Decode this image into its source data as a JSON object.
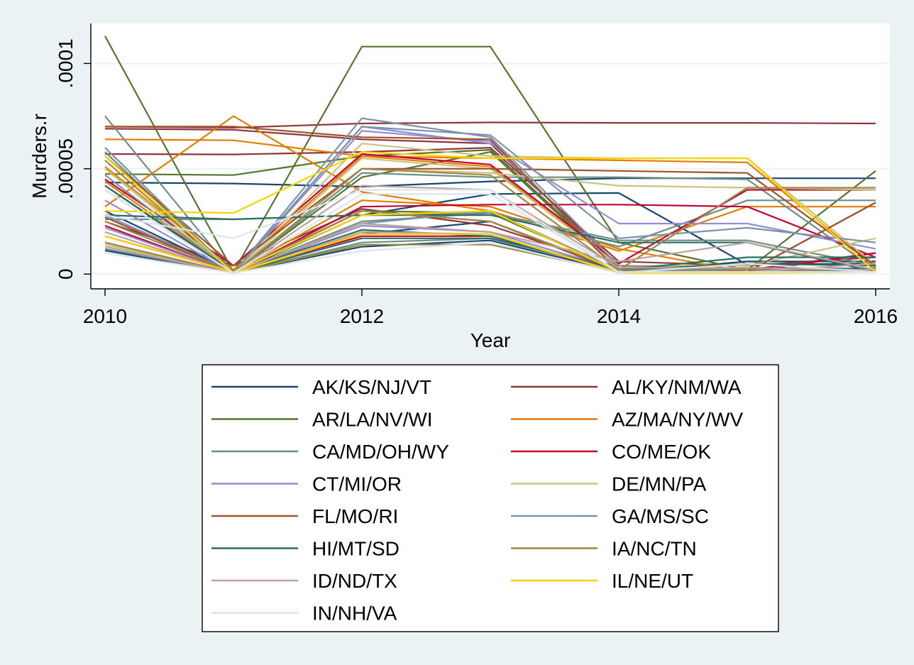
{
  "chart_data": {
    "type": "line",
    "title": "",
    "xlabel": "Year",
    "ylabel": "Murders.r",
    "x": [
      2010,
      2011,
      2012,
      2013,
      2014,
      2015,
      2016
    ],
    "xlim": [
      2010,
      2016
    ],
    "ylim": [
      -7e-06,
      0.000119
    ],
    "x_ticks": [
      2010,
      2012,
      2014,
      2016
    ],
    "x_tick_labels": [
      "2010",
      "2012",
      "2014",
      "2016"
    ],
    "y_ticks": [
      0,
      5e-05,
      0.0001
    ],
    "y_tick_labels": [
      "0",
      ".00005",
      ".0001"
    ],
    "grid": "horizontal",
    "legend_position": "bottom",
    "legend_columns": 2,
    "series": [
      {
        "name": "AK/KS/NJ/VT",
        "color": "#1a476f",
        "values": [
          4.35e-05,
          4.3e-05,
          4.15e-05,
          4.4e-05,
          4.55e-05,
          4.55e-05,
          4.55e-05
        ]
      },
      {
        "name": "AK/KS/NJ/VT",
        "color": "#1a476f",
        "values": [
          1.12e-05,
          5e-07,
          1.3e-05,
          1.6e-05,
          1e-06,
          6e-06,
          6e-06
        ]
      },
      {
        "name": "AK/KS/NJ/VT",
        "color": "#1a476f",
        "values": [
          4.2e-05,
          5e-07,
          2.8e-05,
          3.8e-05,
          3.85e-05,
          4.5e-06,
          5e-06
        ]
      },
      {
        "name": "AK/KS/NJ/VT",
        "color": "#1a476f",
        "values": [
          3e-05,
          1e-06,
          1.9e-05,
          2.5e-05,
          2e-06,
          3e-06,
          2.5e-06
        ]
      },
      {
        "name": "AL/KY/NM/WA",
        "color": "#90353b",
        "values": [
          7e-05,
          6.95e-05,
          7.15e-05,
          7.2e-05,
          7.18e-05,
          7.18e-05,
          7.15e-05
        ]
      },
      {
        "name": "AL/KY/NM/WA",
        "color": "#90353b",
        "values": [
          6.9e-05,
          6.85e-05,
          6.4e-05,
          6.2e-05,
          4e-06,
          2e-06,
          1e-05
        ]
      },
      {
        "name": "AL/KY/NM/WA",
        "color": "#90353b",
        "values": [
          5.7e-05,
          5.68e-05,
          5.8e-05,
          6e-05,
          6e-06,
          4e-06,
          8e-06
        ]
      },
      {
        "name": "AL/KY/NM/WA",
        "color": "#90353b",
        "values": [
          2.5e-05,
          4e-06,
          3.1e-05,
          2.3e-05,
          3e-06,
          1e-06,
          3.4e-05
        ]
      },
      {
        "name": "AR/LA/NV/WI",
        "color": "#55752f",
        "values": [
          0.000113,
          1e-06,
          0.000108,
          0.000108,
          1.5e-05,
          2e-06,
          4.9e-05
        ]
      },
      {
        "name": "AR/LA/NV/WI",
        "color": "#55752f",
        "values": [
          4.75e-05,
          4.7e-05,
          5.6e-05,
          5.9e-05,
          3e-06,
          2e-06,
          2e-06
        ]
      },
      {
        "name": "AR/LA/NV/WI",
        "color": "#55752f",
        "values": [
          5.6e-05,
          5e-07,
          4.6e-05,
          5.8e-05,
          2e-06,
          1e-06,
          1e-06
        ]
      },
      {
        "name": "AR/LA/NV/WI",
        "color": "#55752f",
        "values": [
          2.8e-05,
          1e-06,
          3e-05,
          2.9e-05,
          2e-06,
          1e-06,
          1e-06
        ]
      },
      {
        "name": "AZ/MA/NY/WV",
        "color": "#e37e00",
        "values": [
          6.4e-05,
          6.35e-05,
          5.6e-05,
          5.5e-05,
          5.4e-05,
          5.3e-05,
          3e-06
        ]
      },
      {
        "name": "AZ/MA/NY/WV",
        "color": "#e37e00",
        "values": [
          3.2e-05,
          7.5e-05,
          3.9e-05,
          3e-05,
          1.1e-05,
          3.2e-05,
          3.2e-05
        ]
      },
      {
        "name": "AZ/MA/NY/WV",
        "color": "#e37e00",
        "values": [
          4.4e-05,
          1e-06,
          3.5e-05,
          3.2e-05,
          1.2e-05,
          1e-06,
          1e-06
        ]
      },
      {
        "name": "AZ/MA/NY/WV",
        "color": "#e37e00",
        "values": [
          5.1e-05,
          2e-06,
          5.6e-05,
          5.1e-05,
          4e-06,
          2e-06,
          2e-06
        ]
      },
      {
        "name": "CA/MD/OH/WY",
        "color": "#6e8e84",
        "values": [
          7.5e-05,
          5e-07,
          4.8e-05,
          4.6e-05,
          4.6e-05,
          4.5e-05,
          2e-06
        ]
      },
      {
        "name": "CA/MD/OH/WY",
        "color": "#6e8e84",
        "values": [
          5.8e-05,
          5e-07,
          2.5e-05,
          2.9e-05,
          1.3e-05,
          3.5e-05,
          3.5e-05
        ]
      },
      {
        "name": "CA/MD/OH/WY",
        "color": "#6e8e84",
        "values": [
          2.6e-05,
          2.6e-05,
          2.8e-05,
          2.9e-05,
          1.6e-05,
          1.6e-05,
          4e-06
        ]
      },
      {
        "name": "CA/MD/OH/WY",
        "color": "#6e8e84",
        "values": [
          1.2e-05,
          5e-07,
          1.5e-05,
          1.7e-05,
          2e-06,
          3e-06,
          1e-06
        ]
      },
      {
        "name": "CO/ME/OK",
        "color": "#c10534",
        "values": [
          4.5e-05,
          4e-06,
          5.7e-05,
          5.2e-05,
          5e-06,
          4e-05,
          4e-05
        ]
      },
      {
        "name": "CO/ME/OK",
        "color": "#c10534",
        "values": [
          2.3e-05,
          5e-07,
          3.2e-05,
          3.3e-05,
          3.3e-05,
          3.2e-05,
          8e-06
        ]
      },
      {
        "name": "CO/ME/OK",
        "color": "#c10534",
        "values": [
          1.8e-05,
          1e-06,
          1.8e-05,
          1.8e-05,
          1e-06,
          1e-06,
          1e-05
        ]
      },
      {
        "name": "CT/MI/OR",
        "color": "#938dd2",
        "values": [
          3.5e-05,
          5e-07,
          7e-05,
          6.2e-05,
          2.4e-05,
          2.4e-05,
          1.2e-05
        ]
      },
      {
        "name": "CT/MI/OR",
        "color": "#938dd2",
        "values": [
          2.2e-05,
          5e-07,
          6.8e-05,
          6.3e-05,
          2e-06,
          1e-06,
          1e-06
        ]
      },
      {
        "name": "CT/MI/OR",
        "color": "#938dd2",
        "values": [
          2.8e-05,
          5e-07,
          2.3e-05,
          2e-05,
          2e-06,
          2e-06,
          1e-06
        ]
      },
      {
        "name": "DE/MN/PA",
        "color": "#cac27e",
        "values": [
          6e-05,
          5e-07,
          6.2e-05,
          5.6e-05,
          5.5e-05,
          5.5e-05,
          4e-06
        ]
      },
      {
        "name": "DE/MN/PA",
        "color": "#cac27e",
        "values": [
          5e-05,
          5e-07,
          5.5e-05,
          5e-05,
          4e-06,
          4e-06,
          1.7e-05
        ]
      },
      {
        "name": "DE/MN/PA",
        "color": "#cac27e",
        "values": [
          1.4e-05,
          5e-07,
          5e-05,
          4.8e-05,
          4.2e-05,
          4.1e-05,
          4e-05
        ]
      },
      {
        "name": "FL/MO/RI",
        "color": "#a0522d",
        "values": [
          7e-05,
          7e-05,
          6.5e-05,
          6.4e-05,
          1e-06,
          2e-06,
          2e-06
        ]
      },
      {
        "name": "FL/MO/RI",
        "color": "#a0522d",
        "values": [
          5.6e-05,
          4e-06,
          5e-05,
          5e-05,
          4.9e-05,
          4.8e-05,
          4e-06
        ]
      },
      {
        "name": "FL/MO/RI",
        "color": "#a0522d",
        "values": [
          2.7e-05,
          5e-07,
          3e-05,
          2.5e-05,
          1e-06,
          1e-06,
          3.4e-05
        ]
      },
      {
        "name": "GA/MS/SC",
        "color": "#7b92a8",
        "values": [
          4.7e-05,
          5e-07,
          7.4e-05,
          6.5e-05,
          4e-06,
          2e-06,
          2e-06
        ]
      },
      {
        "name": "GA/MS/SC",
        "color": "#7b92a8",
        "values": [
          6e-05,
          5e-07,
          7e-05,
          6.6e-05,
          1.7e-05,
          2.2e-05,
          1.5e-05
        ]
      },
      {
        "name": "GA/MS/SC",
        "color": "#7b92a8",
        "values": [
          4e-05,
          5e-07,
          2.4e-05,
          3e-05,
          2e-06,
          1e-06,
          1e-06
        ]
      },
      {
        "name": "HI/MT/SD",
        "color": "#2d6d66",
        "values": [
          2.8e-05,
          2.6e-05,
          2.8e-05,
          2.8e-05,
          1.5e-05,
          1.5e-05,
          1e-06
        ]
      },
      {
        "name": "HI/MT/SD",
        "color": "#2d6d66",
        "values": [
          4.2e-05,
          1e-06,
          2.1e-05,
          1.8e-05,
          2e-06,
          8e-06,
          8e-06
        ]
      },
      {
        "name": "HI/MT/SD",
        "color": "#2d6d66",
        "values": [
          1.5e-05,
          5e-07,
          1.7e-05,
          1.7e-05,
          2e-06,
          5e-06,
          4e-06
        ]
      },
      {
        "name": "IA/NC/TN",
        "color": "#9c8847",
        "values": [
          5.4e-05,
          5e-07,
          5e-05,
          4.7e-05,
          2e-06,
          4.1e-05,
          4.1e-05
        ]
      },
      {
        "name": "IA/NC/TN",
        "color": "#9c8847",
        "values": [
          1.5e-05,
          5e-07,
          1.4e-05,
          1.4e-05,
          1e-06,
          1e-06,
          1e-06
        ]
      },
      {
        "name": "IA/NC/TN",
        "color": "#9c8847",
        "values": [
          2.5e-05,
          1e-06,
          3e-05,
          2.5e-05,
          2e-06,
          2e-06,
          2e-06
        ]
      },
      {
        "name": "ID/ND/TX",
        "color": "#bfa19c",
        "values": [
          1.3e-05,
          5e-07,
          4.2e-05,
          4e-05,
          3e-06,
          3e-06,
          2e-06
        ]
      },
      {
        "name": "ID/ND/TX",
        "color": "#bfa19c",
        "values": [
          4e-05,
          5e-07,
          2.4e-05,
          2e-05,
          6e-06,
          1.5e-05,
          2e-06
        ]
      },
      {
        "name": "ID/ND/TX",
        "color": "#bfa19c",
        "values": [
          2e-05,
          5e-07,
          2e-05,
          1.9e-05,
          1e-06,
          1e-06,
          5e-06
        ]
      },
      {
        "name": "IL/NE/UT",
        "color": "#ffd200",
        "values": [
          3e-05,
          2.9e-05,
          5.8e-05,
          5.5e-05,
          5.5e-05,
          5.5e-05,
          1e-06
        ]
      },
      {
        "name": "IL/NE/UT",
        "color": "#ffd200",
        "values": [
          5.6e-05,
          5e-07,
          1.9e-05,
          1.9e-05,
          5e-07,
          5e-07,
          1e-06
        ]
      },
      {
        "name": "IL/NE/UT",
        "color": "#ffd200",
        "values": [
          1.8e-05,
          1e-06,
          2.8e-05,
          3e-05,
          1e-06,
          1e-06,
          1e-06
        ]
      },
      {
        "name": "IN/NH/VA",
        "color": "#d9e6eb",
        "values": [
          2.8e-05,
          1.7e-05,
          4e-05,
          4e-05,
          1e-06,
          1e-06,
          1e-06
        ]
      },
      {
        "name": "IN/NH/VA",
        "color": "#d9e6eb",
        "values": [
          1e-05,
          5e-07,
          1.1e-05,
          1.5e-05,
          5e-07,
          5e-06,
          1e-06
        ]
      },
      {
        "name": "IN/NH/VA",
        "color": "#d9e6eb",
        "values": [
          4e-05,
          5e-07,
          3.8e-05,
          3.8e-05,
          1e-06,
          1e-06,
          1e-06
        ]
      }
    ],
    "legend": [
      {
        "label": "AK/KS/NJ/VT",
        "color": "#1a476f"
      },
      {
        "label": "AL/KY/NM/WA",
        "color": "#90353b"
      },
      {
        "label": "AR/LA/NV/WI",
        "color": "#55752f"
      },
      {
        "label": "AZ/MA/NY/WV",
        "color": "#e37e00"
      },
      {
        "label": "CA/MD/OH/WY",
        "color": "#6e8e84"
      },
      {
        "label": "CO/ME/OK",
        "color": "#c10534"
      },
      {
        "label": "CT/MI/OR",
        "color": "#938dd2"
      },
      {
        "label": "DE/MN/PA",
        "color": "#cac27e"
      },
      {
        "label": "FL/MO/RI",
        "color": "#a0522d"
      },
      {
        "label": "GA/MS/SC",
        "color": "#7b92a8"
      },
      {
        "label": "HI/MT/SD",
        "color": "#2d6d66"
      },
      {
        "label": "IA/NC/TN",
        "color": "#9c8847"
      },
      {
        "label": "ID/ND/TX",
        "color": "#bfa19c"
      },
      {
        "label": "IL/NE/UT",
        "color": "#ffd200"
      },
      {
        "label": "IN/NH/VA",
        "color": "#d9e6eb"
      }
    ],
    "colors": {
      "page_background": "#eaf2f3",
      "plot_background": "#ffffff",
      "grid": "#eaf2f3",
      "axis": "#000000"
    }
  }
}
